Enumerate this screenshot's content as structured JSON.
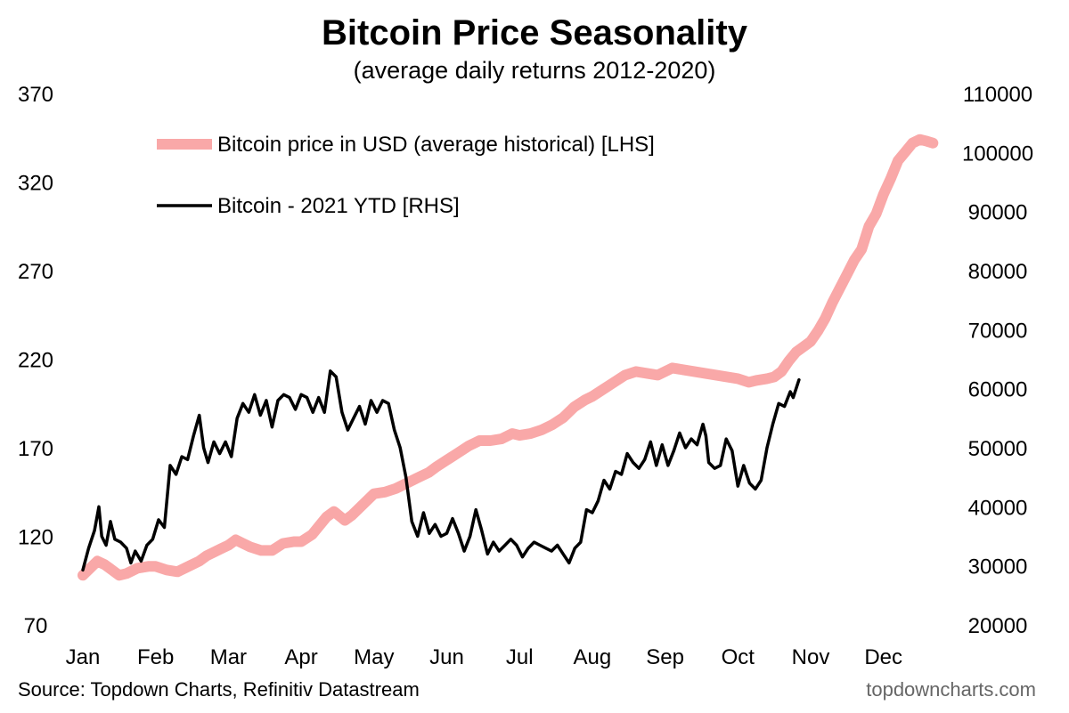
{
  "chart_data": {
    "type": "line",
    "title": "Bitcoin Price Seasonality",
    "subtitle": "(average daily returns 2012-2020)",
    "x_axis": {
      "tick_labels": [
        "Jan",
        "Feb",
        "Mar",
        "Apr",
        "May",
        "Jun",
        "Jul",
        "Aug",
        "Sep",
        "Oct",
        "Nov",
        "Dec"
      ],
      "range_months": [
        0,
        11.8
      ]
    },
    "y_left": {
      "range": [
        70,
        370
      ],
      "ticks": [
        70,
        120,
        170,
        220,
        270,
        320,
        370
      ],
      "tick_labels": [
        "70",
        "120",
        "170",
        "220",
        "270",
        "320",
        "370"
      ]
    },
    "y_right": {
      "range": [
        20000,
        110000
      ],
      "ticks": [
        20000,
        30000,
        40000,
        50000,
        60000,
        70000,
        80000,
        90000,
        100000,
        110000
      ],
      "tick_labels": [
        "20000",
        "30000",
        "40000",
        "50000",
        "60000",
        "70000",
        "80000",
        "90000",
        "100000",
        "110000"
      ]
    },
    "grid": false,
    "legend_position": "top-left",
    "series": [
      {
        "name": "Bitcoin price in USD (average historical) [LHS]",
        "axis": "left",
        "color": "#f9a8a8",
        "points": [
          [
            0,
            98
          ],
          [
            0.1,
            102
          ],
          [
            0.2,
            106
          ],
          [
            0.3,
            104
          ],
          [
            0.4,
            101
          ],
          [
            0.5,
            98
          ],
          [
            0.6,
            99
          ],
          [
            0.75,
            102
          ],
          [
            0.9,
            103
          ],
          [
            1.0,
            103
          ],
          [
            1.15,
            101
          ],
          [
            1.3,
            100
          ],
          [
            1.4,
            102
          ],
          [
            1.5,
            104
          ],
          [
            1.6,
            106
          ],
          [
            1.7,
            109
          ],
          [
            1.8,
            111
          ],
          [
            1.9,
            113
          ],
          [
            2.0,
            115
          ],
          [
            2.1,
            118
          ],
          [
            2.2,
            116
          ],
          [
            2.3,
            114
          ],
          [
            2.45,
            112
          ],
          [
            2.6,
            112
          ],
          [
            2.75,
            116
          ],
          [
            2.9,
            117
          ],
          [
            3.0,
            117
          ],
          [
            3.15,
            121
          ],
          [
            3.25,
            126
          ],
          [
            3.35,
            131
          ],
          [
            3.45,
            134
          ],
          [
            3.6,
            129
          ],
          [
            3.7,
            132
          ],
          [
            3.85,
            138
          ],
          [
            4.0,
            144
          ],
          [
            4.15,
            145
          ],
          [
            4.3,
            147
          ],
          [
            4.45,
            150
          ],
          [
            4.6,
            153
          ],
          [
            4.75,
            156
          ],
          [
            4.85,
            159
          ],
          [
            5.0,
            163
          ],
          [
            5.15,
            167
          ],
          [
            5.3,
            171
          ],
          [
            5.45,
            174
          ],
          [
            5.6,
            174
          ],
          [
            5.75,
            175
          ],
          [
            5.9,
            178
          ],
          [
            6.0,
            177
          ],
          [
            6.15,
            178
          ],
          [
            6.3,
            180
          ],
          [
            6.45,
            183
          ],
          [
            6.6,
            187
          ],
          [
            6.75,
            193
          ],
          [
            6.9,
            197
          ],
          [
            7.0,
            199
          ],
          [
            7.15,
            203
          ],
          [
            7.3,
            207
          ],
          [
            7.45,
            211
          ],
          [
            7.6,
            213
          ],
          [
            7.75,
            212
          ],
          [
            7.9,
            211
          ],
          [
            8.0,
            213
          ],
          [
            8.1,
            215
          ],
          [
            8.25,
            214
          ],
          [
            8.4,
            213
          ],
          [
            8.55,
            212
          ],
          [
            8.7,
            211
          ],
          [
            8.85,
            210
          ],
          [
            9.0,
            209
          ],
          [
            9.15,
            207
          ],
          [
            9.25,
            208
          ],
          [
            9.4,
            209
          ],
          [
            9.5,
            210
          ],
          [
            9.6,
            213
          ],
          [
            9.7,
            219
          ],
          [
            9.8,
            224
          ],
          [
            9.9,
            227
          ],
          [
            10.0,
            230
          ],
          [
            10.1,
            236
          ],
          [
            10.2,
            243
          ],
          [
            10.3,
            252
          ],
          [
            10.4,
            260
          ],
          [
            10.5,
            268
          ],
          [
            10.6,
            276
          ],
          [
            10.7,
            282
          ],
          [
            10.8,
            295
          ],
          [
            10.9,
            302
          ],
          [
            11.0,
            313
          ],
          [
            11.1,
            322
          ],
          [
            11.2,
            332
          ],
          [
            11.3,
            337
          ],
          [
            11.4,
            342
          ],
          [
            11.5,
            344
          ],
          [
            11.6,
            343
          ],
          [
            11.68,
            342
          ]
        ]
      },
      {
        "name": "Bitcoin - 2021 YTD [RHS]",
        "axis": "right",
        "color": "#000000",
        "points": [
          [
            0,
            29300
          ],
          [
            0.08,
            33000
          ],
          [
            0.16,
            36000
          ],
          [
            0.22,
            40000
          ],
          [
            0.26,
            35000
          ],
          [
            0.32,
            33500
          ],
          [
            0.38,
            37500
          ],
          [
            0.44,
            34500
          ],
          [
            0.52,
            34000
          ],
          [
            0.6,
            33000
          ],
          [
            0.66,
            30500
          ],
          [
            0.72,
            32500
          ],
          [
            0.8,
            30800
          ],
          [
            0.88,
            33500
          ],
          [
            0.96,
            34500
          ],
          [
            1.04,
            37800
          ],
          [
            1.12,
            36500
          ],
          [
            1.2,
            47000
          ],
          [
            1.28,
            45500
          ],
          [
            1.36,
            48500
          ],
          [
            1.44,
            48000
          ],
          [
            1.52,
            52000
          ],
          [
            1.6,
            55500
          ],
          [
            1.66,
            50000
          ],
          [
            1.72,
            47500
          ],
          [
            1.8,
            51000
          ],
          [
            1.88,
            49000
          ],
          [
            1.96,
            51000
          ],
          [
            2.04,
            48500
          ],
          [
            2.12,
            55000
          ],
          [
            2.2,
            57500
          ],
          [
            2.28,
            56000
          ],
          [
            2.36,
            59000
          ],
          [
            2.44,
            55500
          ],
          [
            2.52,
            58000
          ],
          [
            2.6,
            53500
          ],
          [
            2.68,
            58000
          ],
          [
            2.76,
            59000
          ],
          [
            2.84,
            58500
          ],
          [
            2.92,
            56500
          ],
          [
            3.0,
            59000
          ],
          [
            3.08,
            58500
          ],
          [
            3.16,
            56000
          ],
          [
            3.24,
            58500
          ],
          [
            3.32,
            56000
          ],
          [
            3.4,
            63000
          ],
          [
            3.48,
            62000
          ],
          [
            3.56,
            56000
          ],
          [
            3.64,
            53000
          ],
          [
            3.72,
            55000
          ],
          [
            3.8,
            57000
          ],
          [
            3.88,
            54000
          ],
          [
            3.96,
            58000
          ],
          [
            4.04,
            56000
          ],
          [
            4.12,
            58000
          ],
          [
            4.2,
            57500
          ],
          [
            4.28,
            53000
          ],
          [
            4.36,
            50000
          ],
          [
            4.44,
            45000
          ],
          [
            4.52,
            37500
          ],
          [
            4.6,
            35000
          ],
          [
            4.68,
            39000
          ],
          [
            4.76,
            35500
          ],
          [
            4.84,
            37000
          ],
          [
            4.92,
            35000
          ],
          [
            5.0,
            35500
          ],
          [
            5.08,
            38000
          ],
          [
            5.16,
            35500
          ],
          [
            5.24,
            32500
          ],
          [
            5.32,
            35000
          ],
          [
            5.4,
            39500
          ],
          [
            5.48,
            36000
          ],
          [
            5.56,
            32000
          ],
          [
            5.64,
            34000
          ],
          [
            5.72,
            32500
          ],
          [
            5.8,
            33500
          ],
          [
            5.88,
            34500
          ],
          [
            5.96,
            33500
          ],
          [
            6.04,
            31500
          ],
          [
            6.12,
            33000
          ],
          [
            6.2,
            34000
          ],
          [
            6.28,
            33500
          ],
          [
            6.36,
            33000
          ],
          [
            6.44,
            32500
          ],
          [
            6.52,
            33500
          ],
          [
            6.6,
            32000
          ],
          [
            6.68,
            30500
          ],
          [
            6.76,
            33000
          ],
          [
            6.84,
            34000
          ],
          [
            6.92,
            39500
          ],
          [
            7.0,
            39000
          ],
          [
            7.08,
            41000
          ],
          [
            7.16,
            44500
          ],
          [
            7.24,
            43000
          ],
          [
            7.32,
            46000
          ],
          [
            7.4,
            45500
          ],
          [
            7.48,
            49000
          ],
          [
            7.56,
            47500
          ],
          [
            7.64,
            46500
          ],
          [
            7.72,
            48000
          ],
          [
            7.8,
            51000
          ],
          [
            7.88,
            47000
          ],
          [
            7.96,
            50500
          ],
          [
            8.04,
            47000
          ],
          [
            8.12,
            49500
          ],
          [
            8.2,
            52500
          ],
          [
            8.28,
            50000
          ],
          [
            8.36,
            51500
          ],
          [
            8.44,
            50500
          ],
          [
            8.52,
            54000
          ],
          [
            8.56,
            52000
          ],
          [
            8.6,
            47500
          ],
          [
            8.68,
            46500
          ],
          [
            8.76,
            47000
          ],
          [
            8.84,
            51500
          ],
          [
            8.92,
            49500
          ],
          [
            9.0,
            43500
          ],
          [
            9.08,
            47000
          ],
          [
            9.16,
            44000
          ],
          [
            9.24,
            43000
          ],
          [
            9.32,
            44500
          ],
          [
            9.4,
            50000
          ],
          [
            9.48,
            54000
          ],
          [
            9.56,
            57500
          ],
          [
            9.64,
            57000
          ],
          [
            9.72,
            59500
          ],
          [
            9.76,
            58500
          ],
          [
            9.84,
            61500
          ]
        ]
      }
    ]
  },
  "footer": {
    "source": "Source: Topdown Charts, Refinitiv Datastream",
    "brand": "topdowncharts.com"
  }
}
